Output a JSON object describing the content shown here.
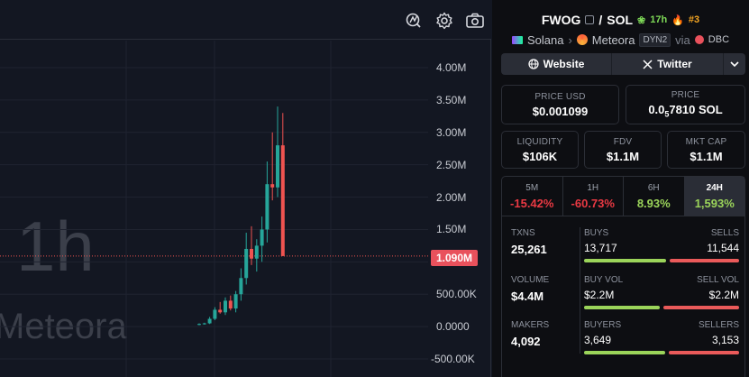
{
  "chart": {
    "interval_watermark": "1h",
    "dex_watermark": "Meteora",
    "axis_labels": [
      "4.00M",
      "3.50M",
      "3.00M",
      "2.50M",
      "2.00M",
      "1.50M",
      "500.00K",
      "0.0000",
      "-500.00K"
    ],
    "last_price_tag": "1.090M",
    "last_price_value": 1.09,
    "y_range_m": [
      -0.5,
      4.0
    ],
    "candles": [
      {
        "o": 0.03,
        "h": 0.05,
        "l": 0.02,
        "c": 0.04
      },
      {
        "o": 0.04,
        "h": 0.06,
        "l": 0.03,
        "c": 0.05
      },
      {
        "o": 0.05,
        "h": 0.15,
        "l": 0.04,
        "c": 0.12
      },
      {
        "o": 0.12,
        "h": 0.3,
        "l": 0.1,
        "c": 0.26
      },
      {
        "o": 0.26,
        "h": 0.38,
        "l": 0.2,
        "c": 0.22
      },
      {
        "o": 0.22,
        "h": 0.45,
        "l": 0.18,
        "c": 0.4
      },
      {
        "o": 0.4,
        "h": 0.48,
        "l": 0.25,
        "c": 0.28
      },
      {
        "o": 0.28,
        "h": 0.55,
        "l": 0.22,
        "c": 0.5
      },
      {
        "o": 0.5,
        "h": 0.9,
        "l": 0.4,
        "c": 0.75
      },
      {
        "o": 0.75,
        "h": 1.45,
        "l": 0.65,
        "c": 1.2
      },
      {
        "o": 1.2,
        "h": 1.55,
        "l": 0.95,
        "c": 1.05
      },
      {
        "o": 1.05,
        "h": 1.35,
        "l": 0.85,
        "c": 1.25
      },
      {
        "o": 1.25,
        "h": 1.7,
        "l": 1.0,
        "c": 1.5
      },
      {
        "o": 1.5,
        "h": 2.55,
        "l": 1.3,
        "c": 2.2
      },
      {
        "o": 2.2,
        "h": 3.0,
        "l": 1.95,
        "c": 2.15
      },
      {
        "o": 2.15,
        "h": 3.4,
        "l": 2.0,
        "c": 2.8
      },
      {
        "o": 2.8,
        "h": 3.3,
        "l": 1.09,
        "c": 1.09
      }
    ],
    "colors": {
      "up": "#26a69a",
      "down": "#ef5350"
    }
  },
  "pair": {
    "base": "FWOG",
    "separator": "/",
    "quote": "SOL",
    "age": "17h",
    "rank": "#3"
  },
  "chain": {
    "chain_name": "Solana",
    "dex_name": "Meteora",
    "pool_badge": "DYN2",
    "via_label": "via",
    "launchpad": "DBC"
  },
  "links": {
    "website": "Website",
    "twitter": "Twitter"
  },
  "stats": {
    "price_usd_label": "PRICE USD",
    "price_usd": "$0.001099",
    "price_label": "PRICE",
    "price_prefix": "0.0",
    "price_zeros": "5",
    "price_suffix": "7810 SOL",
    "liquidity_label": "LIQUIDITY",
    "liquidity": "$106K",
    "fdv_label": "FDV",
    "fdv": "$1.1M",
    "mcap_label": "MKT CAP",
    "mcap": "$1.1M"
  },
  "timeframes": [
    {
      "label": "5M",
      "value": "-15.42%",
      "sign": "neg"
    },
    {
      "label": "1H",
      "value": "-60.73%",
      "sign": "neg"
    },
    {
      "label": "6H",
      "value": "8.93%",
      "sign": "pos"
    },
    {
      "label": "24H",
      "value": "1,593%",
      "sign": "pos",
      "active": true
    }
  ],
  "txns": {
    "label": "TXNS",
    "value": "25,261",
    "buys_label": "BUYS",
    "buys": "13,717",
    "sells_label": "SELLS",
    "sells": "11,544",
    "buy_ratio": 0.543
  },
  "volume": {
    "label": "VOLUME",
    "value": "$4.4M",
    "buy_label": "BUY VOL",
    "buy": "$2.2M",
    "sell_label": "SELL VOL",
    "sell": "$2.2M",
    "buy_ratio": 0.5
  },
  "makers": {
    "label": "MAKERS",
    "value": "4,092",
    "buyers_label": "BUYERS",
    "buyers": "3,649",
    "sellers_label": "SELLERS",
    "sellers": "3,153",
    "buy_ratio": 0.536
  }
}
